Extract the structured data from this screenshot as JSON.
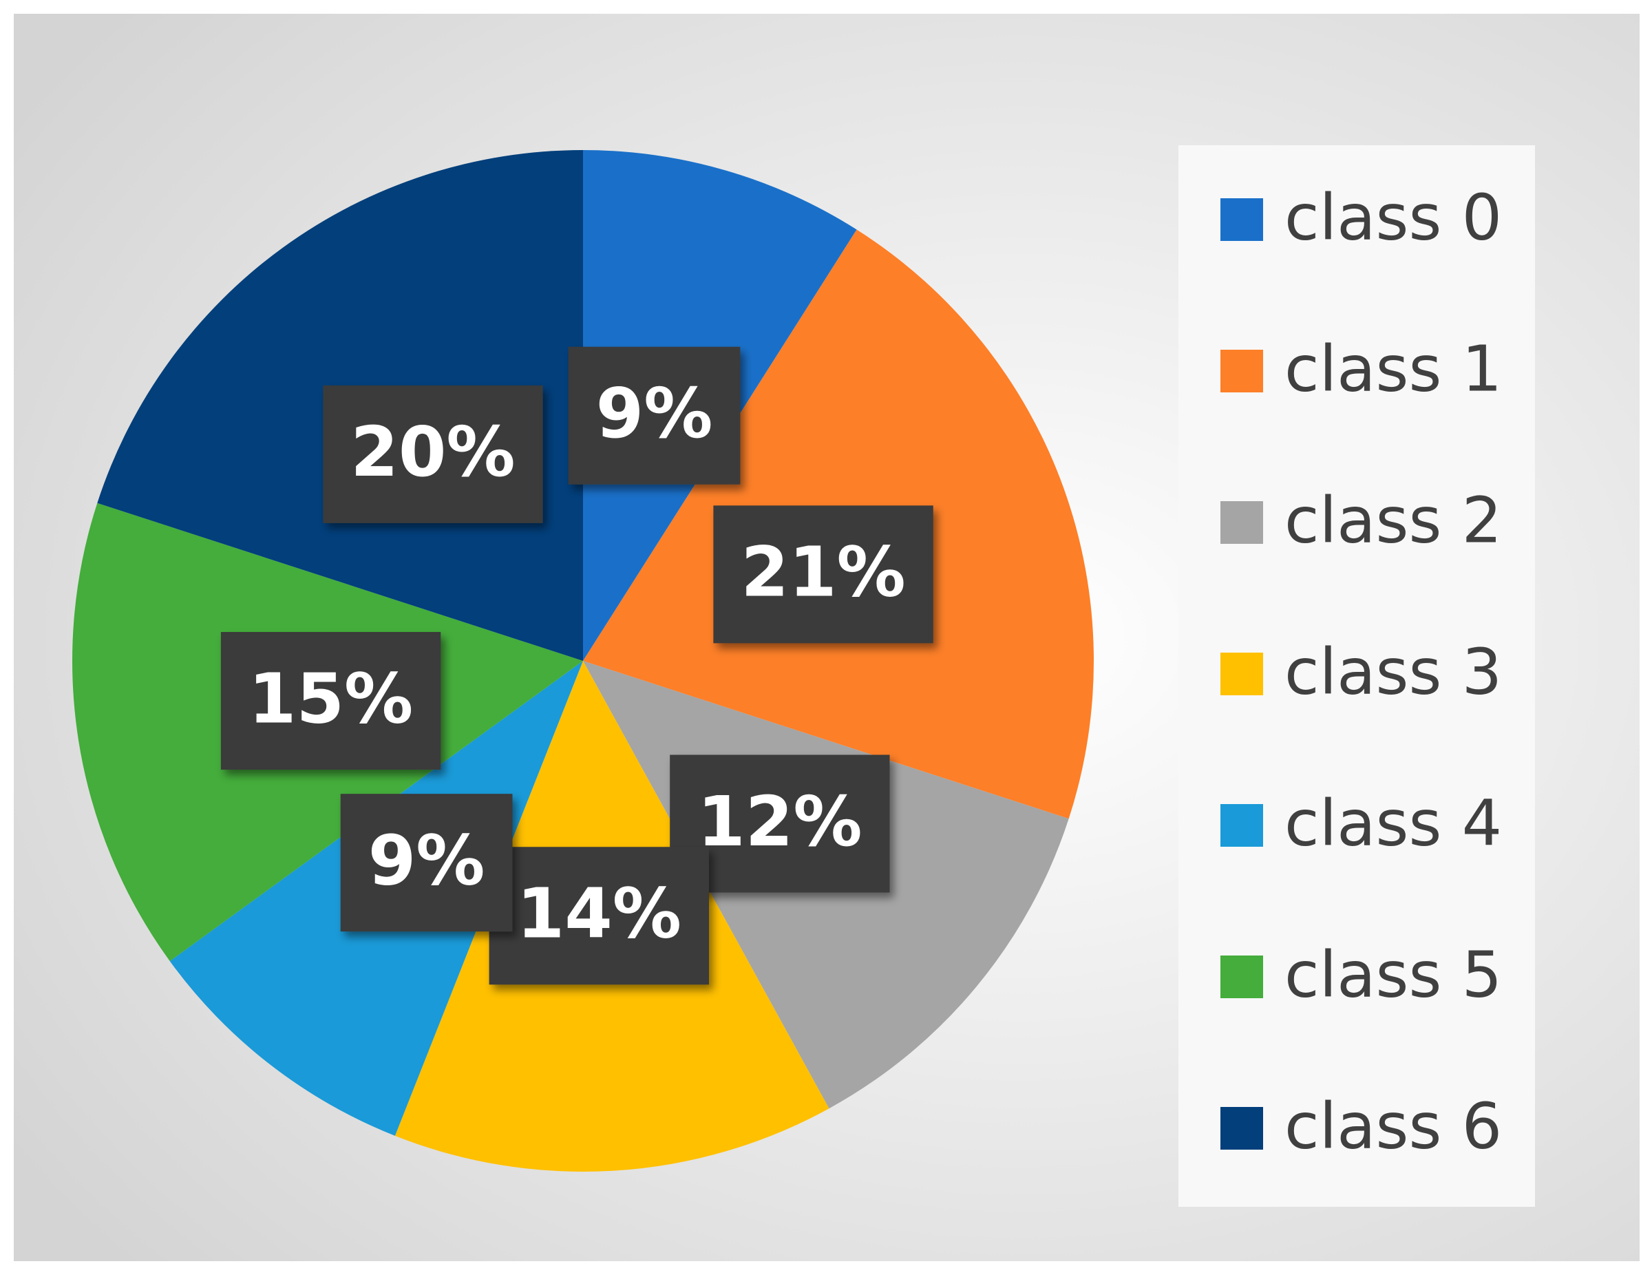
{
  "chart_data": {
    "type": "pie",
    "categories": [
      "class 0",
      "class 1",
      "class 2",
      "class 3",
      "class 4",
      "class 5",
      "class 6"
    ],
    "values": [
      9,
      21,
      12,
      14,
      9,
      15,
      20
    ],
    "value_labels": [
      "9%",
      "21%",
      "12%",
      "14%",
      "9%",
      "15%",
      "20%"
    ],
    "colors": [
      "#1a70c9",
      "#fd7f28",
      "#a5a5a5",
      "#ffc000",
      "#1a9ad8",
      "#44ad3b",
      "#023f7b"
    ],
    "legend": "right"
  }
}
